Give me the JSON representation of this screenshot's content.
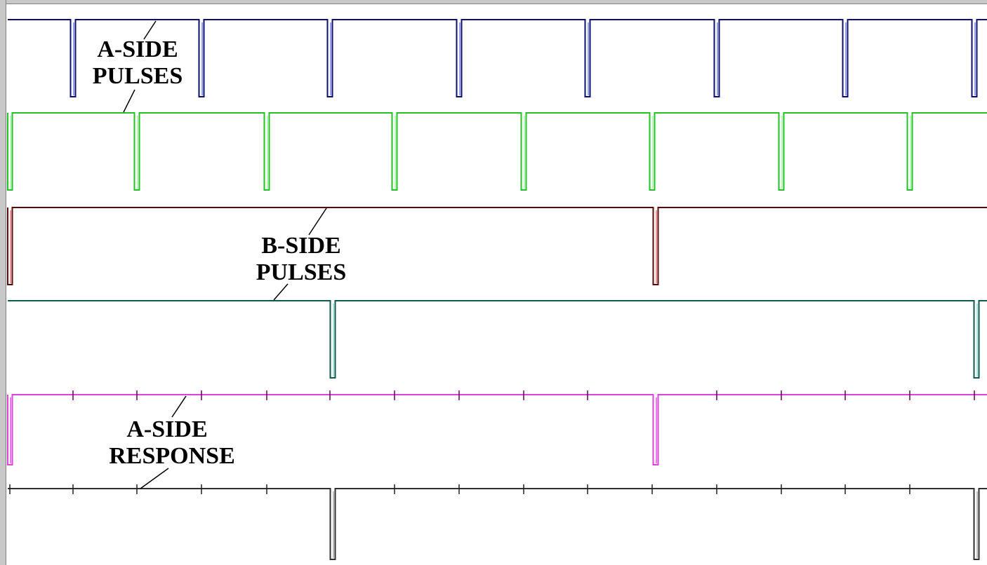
{
  "traces": [
    {
      "name": "trace-1",
      "color": "#0a1070",
      "pulses": [
        104,
        287,
        470,
        654,
        837,
        1021,
        1204,
        1388
      ],
      "fill": "#3040d8"
    },
    {
      "name": "trace-2",
      "color": "#22c422",
      "pulses": [
        14,
        195,
        380,
        562,
        746,
        929,
        1113,
        1296
      ],
      "fill": "#7ee87e"
    },
    {
      "name": "trace-3",
      "color": "#5a0808",
      "pulses": [
        14,
        934
      ],
      "fill": "#e03030"
    },
    {
      "name": "trace-4",
      "color": "#0f5a50",
      "pulses": [
        474,
        1391
      ],
      "fill": "#60c8c0"
    },
    {
      "name": "trace-5",
      "color": "#e040e0",
      "pulses": [
        14,
        934
      ],
      "fill": "#c000c0",
      "ticks": [
        104,
        195,
        287,
        380,
        470,
        562,
        654,
        746,
        837,
        1021,
        1113,
        1204,
        1296,
        1388
      ]
    },
    {
      "name": "trace-6",
      "color": "#303030",
      "pulses": [
        474,
        1391
      ],
      "fill": "#808080",
      "ticks": [
        14,
        104,
        195,
        287,
        380,
        562,
        654,
        746,
        837,
        929,
        1021,
        1113,
        1204,
        1296
      ]
    }
  ],
  "labels": {
    "a_side_pulses": {
      "line1": "A-SIDE",
      "line2": "PULSES"
    },
    "b_side_pulses": {
      "line1": "B-SIDE",
      "line2": "PULSES"
    },
    "a_side_response": {
      "line1": "A-SIDE",
      "line2": "RESPONSE"
    }
  }
}
